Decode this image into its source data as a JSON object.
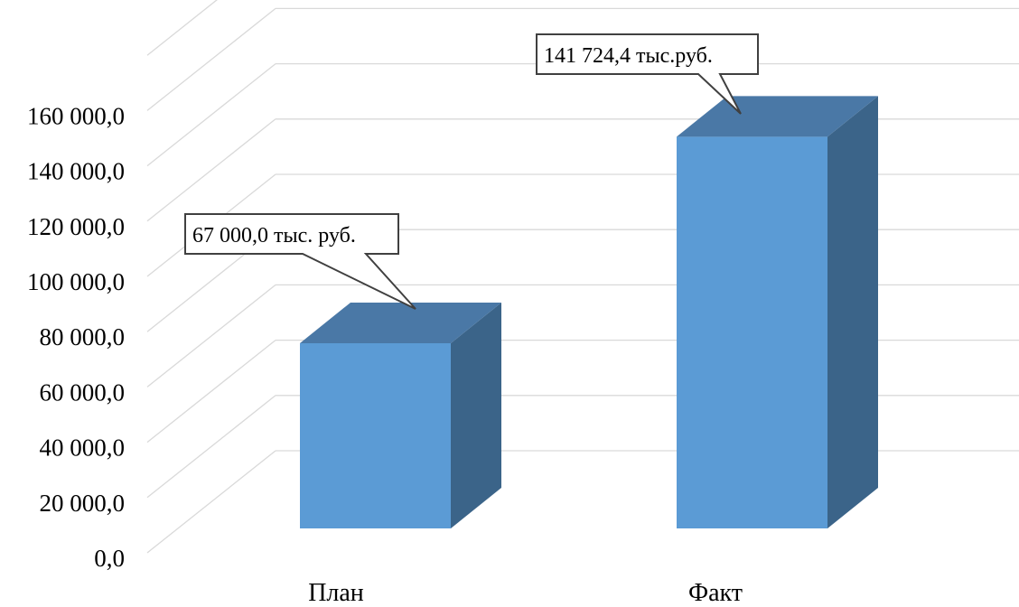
{
  "chart_data": {
    "type": "bar",
    "style": "3d-column",
    "categories": [
      "План",
      "Факт"
    ],
    "values": [
      67000.0,
      141724.4
    ],
    "ylim": [
      0,
      160000
    ],
    "yticks": [
      0,
      20000,
      40000,
      60000,
      80000,
      100000,
      120000,
      140000,
      160000
    ],
    "ytick_labels": [
      "0,0",
      "20 000,0",
      "40 000,0",
      "60 000,0",
      "80 000,0",
      "100 000,0",
      "120 000,0",
      "140 000,0",
      "160 000,0"
    ],
    "data_labels": [
      "67 000,0 тыс. руб.",
      "141 724,4 тыс.руб."
    ],
    "title": "",
    "xlabel": "",
    "ylabel": "",
    "grid": true,
    "legend": "none",
    "colors": {
      "bar_front": "#5b9bd5",
      "bar_top": "#4a78a6",
      "bar_side": "#3b6489",
      "gridline": "#d9d9d9"
    }
  }
}
